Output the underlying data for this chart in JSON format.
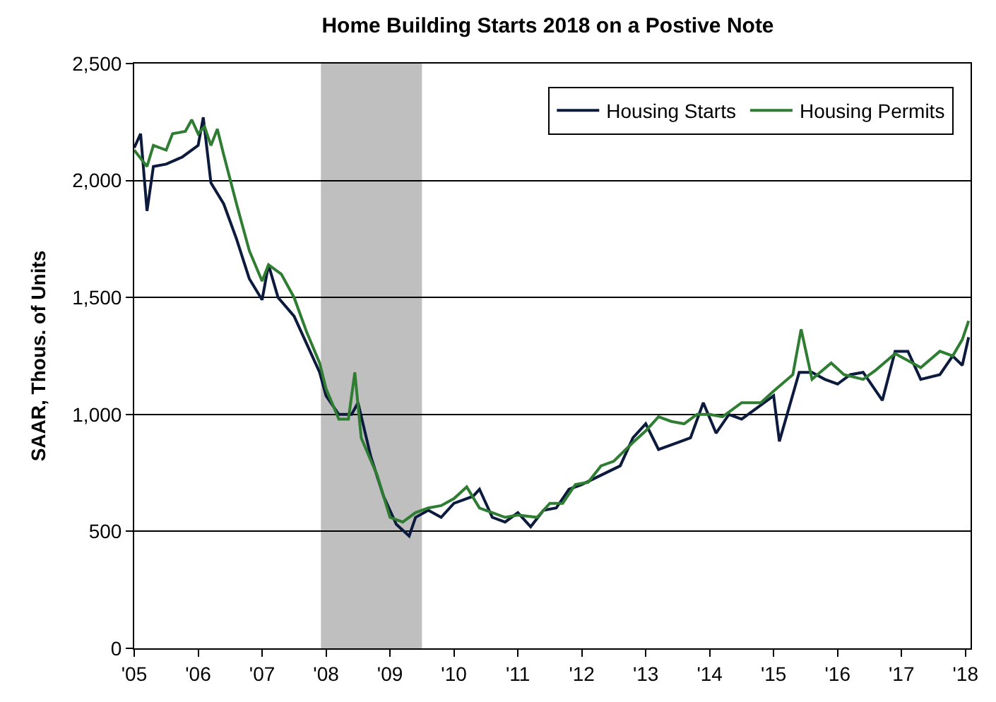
{
  "chart_data": {
    "type": "line",
    "title": "Home Building Starts 2018 on a Postive Note",
    "ylabel": "SAAR, Thous. of Units",
    "xlim": [
      2005,
      2018.08
    ],
    "xticks": [
      {
        "value": 2005,
        "label": "'05"
      },
      {
        "value": 2006,
        "label": "'06"
      },
      {
        "value": 2007,
        "label": "'07"
      },
      {
        "value": 2008,
        "label": "'08"
      },
      {
        "value": 2009,
        "label": "'09"
      },
      {
        "value": 2010,
        "label": "'10"
      },
      {
        "value": 2011,
        "label": "'11"
      },
      {
        "value": 2012,
        "label": "'12"
      },
      {
        "value": 2013,
        "label": "'13"
      },
      {
        "value": 2014,
        "label": "'14"
      },
      {
        "value": 2015,
        "label": "'15"
      },
      {
        "value": 2016,
        "label": "'16"
      },
      {
        "value": 2017,
        "label": "'17"
      },
      {
        "value": 2018,
        "label": "'18"
      }
    ],
    "ylim": [
      0,
      2500
    ],
    "yticks": [
      0,
      500,
      {
        "value": 1000,
        "label": "1,000"
      },
      {
        "value": 1500,
        "label": "1,500"
      },
      {
        "value": 2000,
        "label": "2,000"
      },
      {
        "value": 2500,
        "label": "2,500"
      }
    ],
    "grid": "y",
    "legend": "top right",
    "line_style": "solid",
    "bands": [
      {
        "axis": "x",
        "from": 2007.92,
        "to": 2009.5,
        "color": "#bfbfbf"
      }
    ],
    "series": [
      {
        "name": "Housing Starts",
        "color": "#0b1a3d",
        "x": [
          2005.0,
          2005.1,
          2005.2,
          2005.3,
          2005.5,
          2005.75,
          2006.0,
          2006.08,
          2006.2,
          2006.4,
          2006.6,
          2006.8,
          2007.0,
          2007.1,
          2007.25,
          2007.5,
          2007.7,
          2007.9,
          2008.0,
          2008.2,
          2008.4,
          2008.5,
          2008.7,
          2008.9,
          2009.1,
          2009.3,
          2009.4,
          2009.6,
          2009.8,
          2010.0,
          2010.3,
          2010.4,
          2010.6,
          2010.8,
          2011.0,
          2011.2,
          2011.4,
          2011.6,
          2011.8,
          2012.0,
          2012.3,
          2012.6,
          2012.8,
          2013.0,
          2013.2,
          2013.5,
          2013.7,
          2013.9,
          2014.1,
          2014.3,
          2014.5,
          2014.8,
          2015.0,
          2015.09,
          2015.4,
          2015.6,
          2015.8,
          2016.0,
          2016.2,
          2016.4,
          2016.7,
          2016.9,
          2017.1,
          2017.3,
          2017.6,
          2017.8,
          2017.95,
          2018.05
        ],
        "values": [
          2140,
          2200,
          1870,
          2060,
          2070,
          2100,
          2150,
          2270,
          1990,
          1900,
          1750,
          1580,
          1490,
          1640,
          1500,
          1420,
          1300,
          1180,
          1080,
          1000,
          1000,
          1050,
          820,
          650,
          530,
          480,
          560,
          590,
          560,
          620,
          650,
          680,
          560,
          540,
          580,
          520,
          590,
          600,
          680,
          700,
          740,
          780,
          900,
          960,
          850,
          880,
          900,
          1050,
          920,
          1000,
          980,
          1040,
          1080,
          885,
          1180,
          1180,
          1150,
          1130,
          1170,
          1180,
          1060,
          1270,
          1270,
          1150,
          1170,
          1250,
          1210,
          1330
        ]
      },
      {
        "name": "Housing Permits",
        "color": "#2e7d32",
        "x": [
          2005.0,
          2005.2,
          2005.3,
          2005.5,
          2005.6,
          2005.8,
          2005.9,
          2006.0,
          2006.1,
          2006.2,
          2006.3,
          2006.4,
          2006.6,
          2006.8,
          2007.0,
          2007.1,
          2007.3,
          2007.5,
          2007.7,
          2007.9,
          2008.0,
          2008.2,
          2008.35,
          2008.45,
          2008.55,
          2008.8,
          2009.0,
          2009.2,
          2009.4,
          2009.6,
          2009.8,
          2010.0,
          2010.2,
          2010.4,
          2010.6,
          2010.8,
          2011.0,
          2011.3,
          2011.5,
          2011.7,
          2011.9,
          2012.1,
          2012.3,
          2012.5,
          2012.8,
          2013.0,
          2013.2,
          2013.4,
          2013.6,
          2013.8,
          2014.0,
          2014.2,
          2014.5,
          2014.8,
          2015.0,
          2015.3,
          2015.43,
          2015.6,
          2015.9,
          2016.1,
          2016.4,
          2016.6,
          2016.9,
          2017.1,
          2017.3,
          2017.6,
          2017.8,
          2017.95,
          2018.05
        ],
        "values": [
          2130,
          2060,
          2150,
          2130,
          2200,
          2210,
          2260,
          2200,
          2230,
          2150,
          2220,
          2110,
          1900,
          1700,
          1570,
          1640,
          1600,
          1500,
          1350,
          1220,
          1110,
          980,
          980,
          1180,
          900,
          740,
          560,
          540,
          580,
          600,
          610,
          640,
          690,
          600,
          580,
          560,
          570,
          560,
          620,
          620,
          700,
          710,
          780,
          800,
          880,
          930,
          990,
          970,
          960,
          1000,
          1000,
          990,
          1050,
          1050,
          1100,
          1170,
          1364,
          1150,
          1220,
          1170,
          1150,
          1190,
          1260,
          1230,
          1200,
          1270,
          1250,
          1320,
          1400
        ]
      }
    ]
  }
}
